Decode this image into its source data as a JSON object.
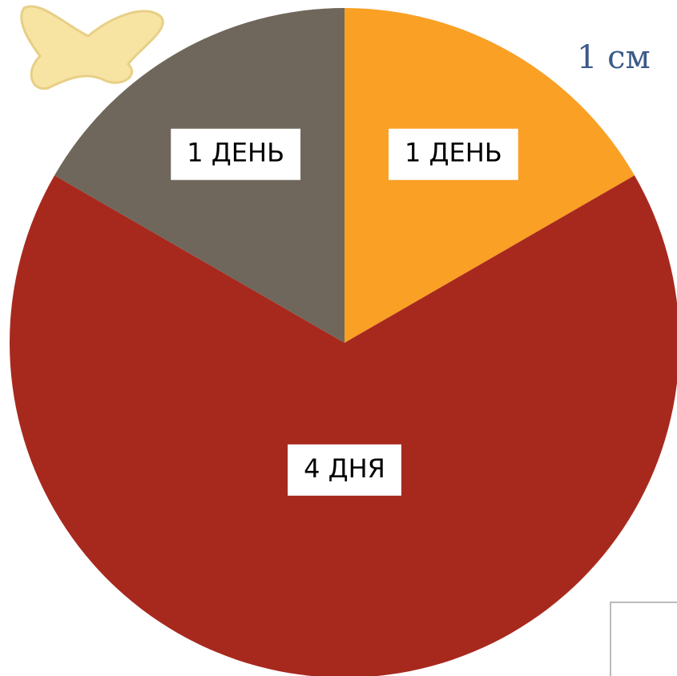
{
  "chart_data": {
    "type": "pie",
    "values": [
      1,
      4,
      1
    ],
    "value_labels": [
      "1 ДЕНЬ",
      "4 ДНЯ",
      "1 ДЕНЬ"
    ],
    "colors": [
      "#f9a025",
      "#a7291e",
      "#6f675b"
    ],
    "annotation": "1 см"
  }
}
